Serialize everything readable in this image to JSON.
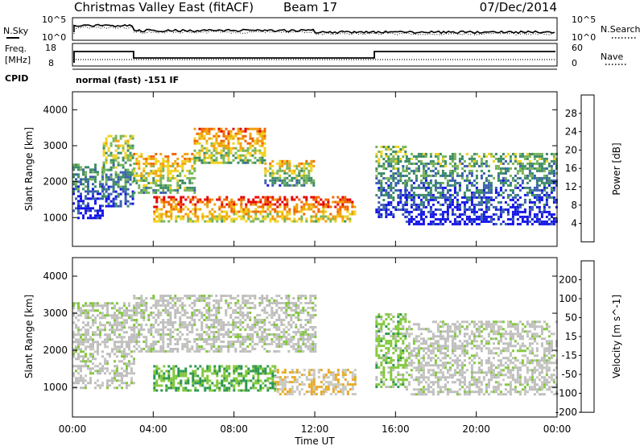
{
  "header": {
    "title": "Christmas Valley East (fitACF)",
    "beam": "Beam 17",
    "date": "07/Dec/2014"
  },
  "strips": {
    "nsky_label": "N.Sky",
    "nsearch_label": "N.Search",
    "nsky_ticks": [
      "10^5",
      "10^0"
    ],
    "nsearch_ticks": [
      "10^5",
      "10^0"
    ],
    "freq_label_1": "Freq.",
    "freq_label_2": "[MHz]",
    "freq_ticks": [
      "18",
      "8"
    ],
    "nave_label": "Nave",
    "nave_ticks": [
      "60",
      "0"
    ],
    "cpid_label": "CPID",
    "cpid_value": "normal (fast) -151 IF"
  },
  "colors": {
    "power_scale": [
      "#1414e6",
      "#3a5fb0",
      "#3c8c64",
      "#78b45a",
      "#f0d21e",
      "#f0a00a",
      "#f06400",
      "#e60000"
    ],
    "velocity_scale": [
      "#1414b4",
      "#2864b4",
      "#2d9650",
      "#82c83c",
      "#c8c8c0",
      "#e6aa28",
      "#f07814",
      "#e61e00"
    ],
    "ground_scatter": "#bebebe"
  },
  "chart_data": [
    {
      "type": "heatmap",
      "title": "",
      "quantity": "Power",
      "xlabel": "",
      "ylabel": "Slant Range [km]",
      "colorbar_label": "Power [dB]",
      "colorbar_ticks": [
        "28",
        "24",
        "20",
        "16",
        "12",
        "8",
        "4"
      ],
      "colorbar_range": [
        0,
        32
      ],
      "x_range": [
        "00:00",
        "24:00"
      ],
      "y_range": [
        200,
        4500
      ],
      "y_ticks": [
        "4000",
        "3000",
        "2000",
        "1000"
      ],
      "echo_regions": [
        {
          "t": [
            0.0,
            1.5
          ],
          "range": [
            1000,
            2500
          ],
          "power": 24
        },
        {
          "t": [
            1.5,
            3.0
          ],
          "range": [
            1300,
            3300
          ],
          "power": 20
        },
        {
          "t": [
            3.0,
            6.0
          ],
          "range": [
            1700,
            2800
          ],
          "power": 14
        },
        {
          "t": [
            6.0,
            9.5
          ],
          "range": [
            2500,
            3500
          ],
          "power": 12
        },
        {
          "t": [
            9.5,
            12.0
          ],
          "range": [
            1900,
            2600
          ],
          "power": 16
        },
        {
          "t": [
            4.0,
            14.0
          ],
          "range": [
            900,
            1600
          ],
          "power": 8
        },
        {
          "t": [
            15.0,
            16.5
          ],
          "range": [
            1000,
            3000
          ],
          "power": 22
        },
        {
          "t": [
            16.5,
            24.0
          ],
          "range": [
            800,
            2800
          ],
          "power": 24
        }
      ]
    },
    {
      "type": "heatmap",
      "title": "",
      "quantity": "Velocity",
      "xlabel": "Time UT",
      "ylabel": "Slant Range [km]",
      "colorbar_label": "Velocity [m s^-1]",
      "colorbar_ticks": [
        "200",
        "100",
        "50",
        "15",
        "-15",
        "-50",
        "-100",
        "-200"
      ],
      "colorbar_range": [
        -250,
        250
      ],
      "x_range": [
        "00:00",
        "24:00"
      ],
      "x_ticks": [
        "00:00",
        "04:00",
        "08:00",
        "12:00",
        "16:00",
        "20:00",
        "00:00"
      ],
      "y_range": [
        200,
        4500
      ],
      "y_ticks": [
        "4000",
        "3000",
        "2000",
        "1000"
      ],
      "echo_regions": [
        {
          "t": [
            0.0,
            3.0
          ],
          "range": [
            1000,
            3300
          ],
          "velocity": 0
        },
        {
          "t": [
            3.0,
            12.0
          ],
          "range": [
            2000,
            3500
          ],
          "velocity": 0
        },
        {
          "t": [
            4.0,
            10.0
          ],
          "range": [
            900,
            1600
          ],
          "velocity": 60
        },
        {
          "t": [
            10.0,
            14.0
          ],
          "range": [
            800,
            1500
          ],
          "velocity": -60
        },
        {
          "t": [
            15.0,
            16.5
          ],
          "range": [
            1000,
            3000
          ],
          "velocity": 40
        },
        {
          "t": [
            16.5,
            24.0
          ],
          "range": [
            800,
            2800
          ],
          "velocity": 0
        }
      ]
    }
  ]
}
